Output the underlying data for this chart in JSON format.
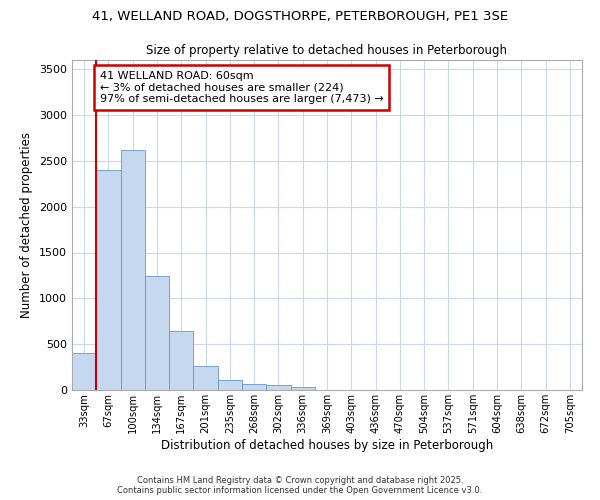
{
  "title_line1": "41, WELLAND ROAD, DOGSTHORPE, PETERBOROUGH, PE1 3SE",
  "title_line2": "Size of property relative to detached houses in Peterborough",
  "xlabel": "Distribution of detached houses by size in Peterborough",
  "ylabel": "Number of detached properties",
  "categories": [
    "33sqm",
    "67sqm",
    "100sqm",
    "134sqm",
    "167sqm",
    "201sqm",
    "235sqm",
    "268sqm",
    "302sqm",
    "336sqm",
    "369sqm",
    "403sqm",
    "436sqm",
    "470sqm",
    "504sqm",
    "537sqm",
    "571sqm",
    "604sqm",
    "638sqm",
    "672sqm",
    "705sqm"
  ],
  "values": [
    400,
    2400,
    2620,
    1240,
    640,
    260,
    110,
    65,
    55,
    30,
    0,
    0,
    0,
    0,
    0,
    0,
    0,
    0,
    0,
    0,
    0
  ],
  "bar_color": "#c5d8f0",
  "bar_edge_color": "#6699cc",
  "annotation_text": "41 WELLAND ROAD: 60sqm\n← 3% of detached houses are smaller (224)\n97% of semi-detached houses are larger (7,473) →",
  "annotation_box_color": "#ffffff",
  "annotation_box_edge": "#cc0000",
  "vline_color": "#cc0000",
  "vline_x": 0.5,
  "ylim": [
    0,
    3600
  ],
  "yticks": [
    0,
    500,
    1000,
    1500,
    2000,
    2500,
    3000,
    3500
  ],
  "background_color": "#ffffff",
  "grid_color": "#c8d8f0",
  "footer_line1": "Contains HM Land Registry data © Crown copyright and database right 2025.",
  "footer_line2": "Contains public sector information licensed under the Open Government Licence v3.0."
}
